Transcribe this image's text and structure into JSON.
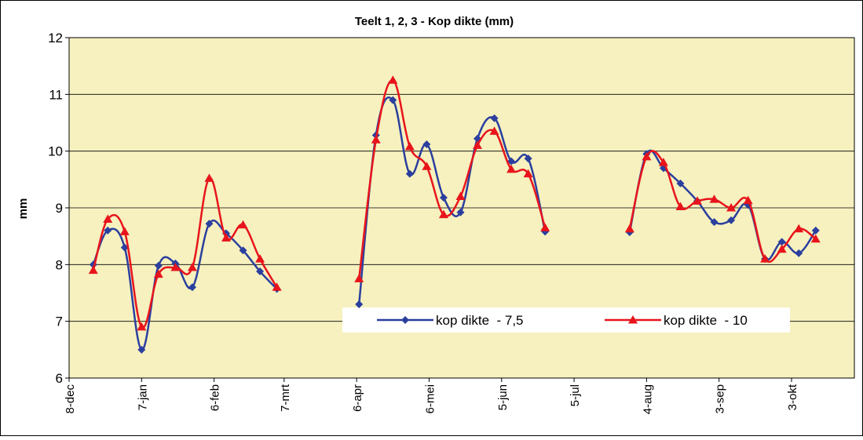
{
  "chart_data": {
    "type": "line",
    "title": "Teelt 1, 2, 3 - Kop dikte (mm)",
    "y_label": "mm",
    "x": [
      10,
      16,
      23,
      30,
      37,
      44,
      51,
      58,
      65,
      72,
      79,
      86,
      null,
      120,
      127,
      134,
      141,
      148,
      155,
      162,
      169,
      176,
      183,
      190,
      197,
      null,
      232,
      239,
      246,
      253,
      260,
      267,
      274,
      281,
      288,
      295,
      302,
      309
    ],
    "xlim": [
      0,
      325
    ],
    "xticks": [
      {
        "value": 0,
        "label": "8-dec"
      },
      {
        "value": 30,
        "label": "7-jan"
      },
      {
        "value": 60,
        "label": "6-feb"
      },
      {
        "value": 89,
        "label": "7-mrt"
      },
      {
        "value": 119,
        "label": "6-apr"
      },
      {
        "value": 149,
        "label": "6-mei"
      },
      {
        "value": 179,
        "label": "5-jun"
      },
      {
        "value": 209,
        "label": "5-jul"
      },
      {
        "value": 239,
        "label": "4-aug"
      },
      {
        "value": 269,
        "label": "3-sep"
      },
      {
        "value": 299,
        "label": "3-okt"
      }
    ],
    "ylim": [
      6,
      12
    ],
    "yticks": [
      6,
      7,
      8,
      9,
      10,
      11,
      12
    ],
    "grid": true,
    "legend": "bottom",
    "series": [
      {
        "name": "kop dikte  - 7,5",
        "color": "#2b3f9e",
        "marker": "diamond",
        "values": [
          8.0,
          8.6,
          8.3,
          6.5,
          7.98,
          8.02,
          7.6,
          8.72,
          8.55,
          8.25,
          7.88,
          7.57,
          null,
          7.3,
          10.28,
          10.9,
          9.6,
          10.12,
          9.18,
          8.92,
          10.22,
          10.58,
          9.82,
          9.87,
          8.58,
          null,
          8.57,
          9.95,
          9.7,
          9.43,
          9.12,
          8.75,
          8.78,
          9.05,
          8.1,
          8.4,
          8.2,
          8.6
        ]
      },
      {
        "name": "kop dikte  - 10",
        "color": "#e8141b",
        "marker": "triangle",
        "values": [
          7.9,
          8.8,
          8.58,
          6.9,
          7.83,
          7.95,
          7.95,
          9.52,
          8.47,
          8.7,
          8.1,
          7.6,
          null,
          7.75,
          10.2,
          11.25,
          10.08,
          9.73,
          8.88,
          9.2,
          10.1,
          10.35,
          9.68,
          9.6,
          8.65,
          null,
          8.63,
          9.9,
          9.8,
          9.02,
          9.12,
          9.15,
          9.0,
          9.13,
          8.1,
          8.27,
          8.63,
          8.45
        ]
      }
    ]
  }
}
